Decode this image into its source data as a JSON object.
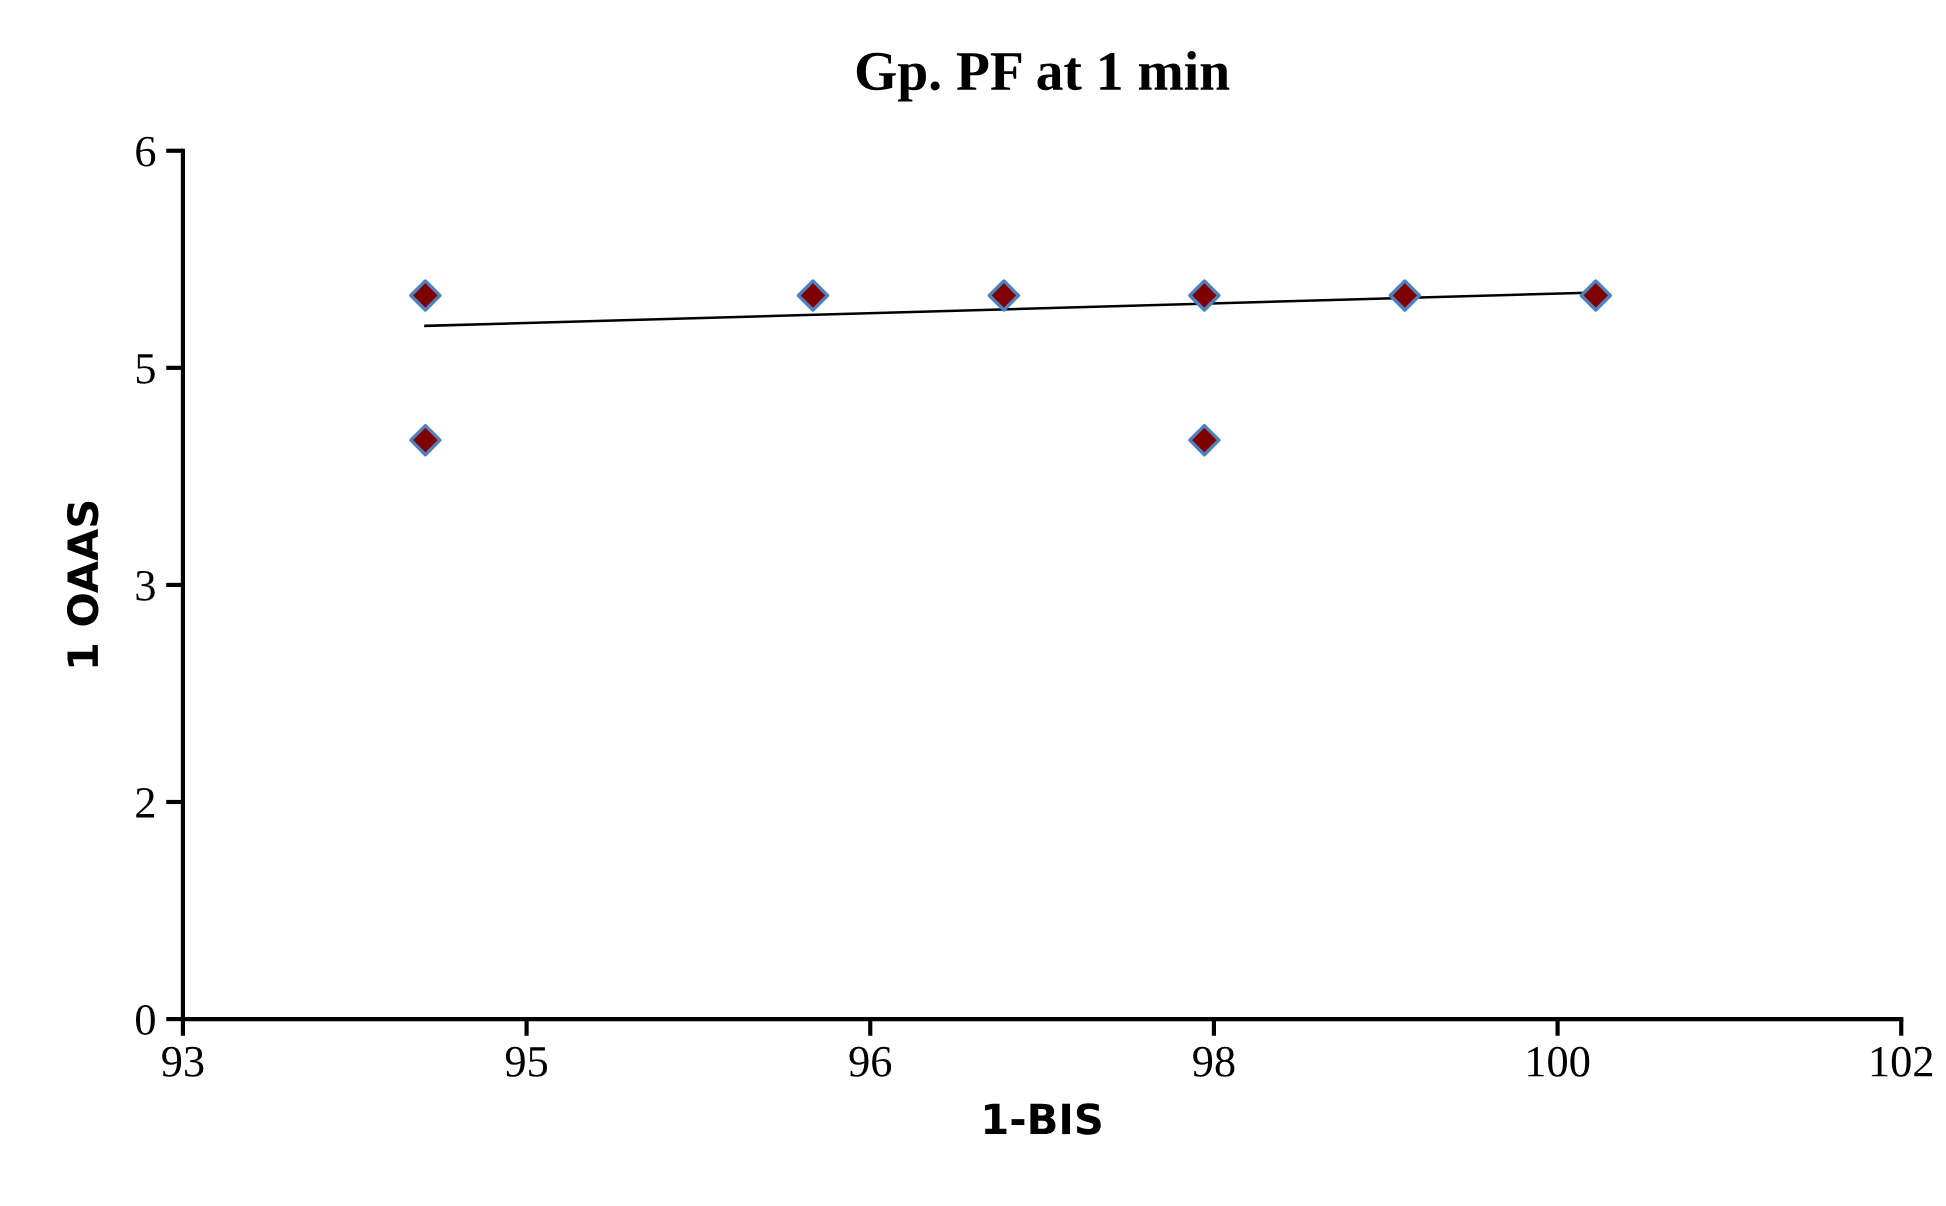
{
  "chart_data": {
    "type": "scatter",
    "title": "Gp. PF at 1 min",
    "xlabel": "1-BIS",
    "ylabel": "1 OAAS",
    "series": [
      {
        "color": "#7f0000",
        "x": [
          94.07,
          94.07,
          96.1,
          97.1,
          98.15,
          98.15,
          99.2,
          100.2
        ],
        "values": [
          5,
          4,
          5,
          5,
          5,
          4,
          5,
          5
        ],
        "marker": "diamond"
      },
      {
        "type": "line",
        "color": "#000000",
        "x": [
          94.07,
          100.2
        ],
        "values": [
          4.79,
          5.02
        ],
        "marker": "none",
        "line_style": "solid"
      }
    ],
    "xlim": [
      92.8,
      101.8
    ],
    "xticks": [
      {
        "value": 92.8,
        "label": "93"
      },
      {
        "value": 94.6,
        "label": "95"
      },
      {
        "value": 96.4,
        "label": "96"
      },
      {
        "value": 98.2,
        "label": "98"
      },
      {
        "value": 100,
        "label": "100"
      },
      {
        "value": 101.8,
        "label": "102"
      }
    ],
    "ylim": [
      0,
      6
    ],
    "yticks": [
      0,
      {
        "value": 1.5,
        "label": "2"
      },
      3,
      {
        "value": 4.5,
        "label": "5"
      },
      6
    ],
    "grid": false,
    "legend": false
  }
}
